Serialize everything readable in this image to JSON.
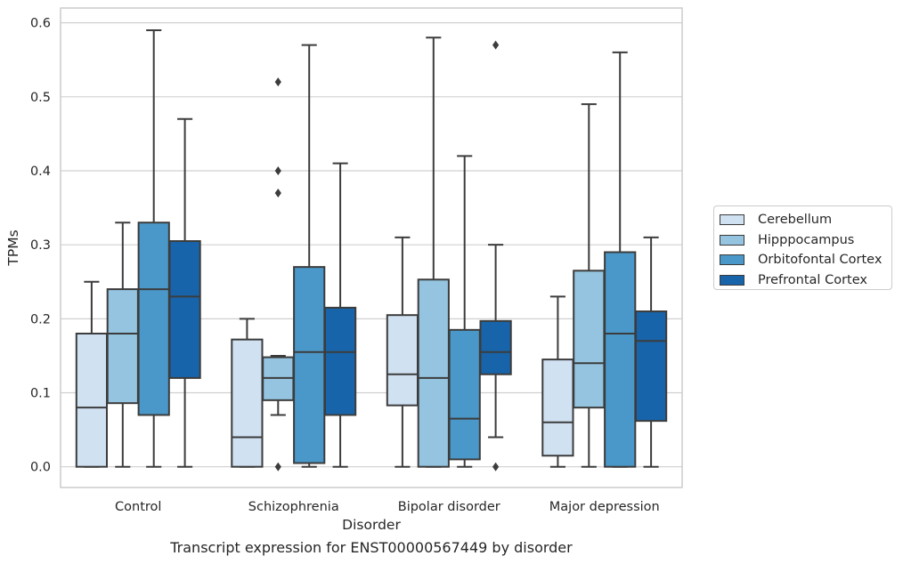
{
  "chart_data": {
    "type": "box",
    "xlabel": "Disorder",
    "ylabel": "TPMs",
    "ylim": [
      -0.028,
      0.62
    ],
    "yticks": [
      0.0,
      0.1,
      0.2,
      0.3,
      0.4,
      0.5,
      0.6
    ],
    "ytick_labels": [
      "0.0",
      "0.1",
      "0.2",
      "0.3",
      "0.4",
      "0.5",
      "0.6"
    ],
    "grid": "horizontal",
    "legend_placement": "right, outside",
    "categories": [
      "Control",
      "Schizophrenia",
      "Bipolar disorder",
      "Major depression"
    ],
    "series": [
      {
        "name": "Cerebellum",
        "color": "#d0e1f2",
        "boxes": [
          {
            "whislo": 0.0,
            "q1": 0.0,
            "med": 0.08,
            "q3": 0.18,
            "whishi": 0.25,
            "fliers": []
          },
          {
            "whislo": 0.0,
            "q1": 0.0,
            "med": 0.04,
            "q3": 0.172,
            "whishi": 0.2,
            "fliers": []
          },
          {
            "whislo": 0.0,
            "q1": 0.083,
            "med": 0.125,
            "q3": 0.205,
            "whishi": 0.31,
            "fliers": []
          },
          {
            "whislo": 0.0,
            "q1": 0.015,
            "med": 0.06,
            "q3": 0.145,
            "whishi": 0.23,
            "fliers": []
          }
        ]
      },
      {
        "name": "Hipppocampus",
        "color": "#94c4df",
        "boxes": [
          {
            "whislo": 0.0,
            "q1": 0.086,
            "med": 0.18,
            "q3": 0.24,
            "whishi": 0.33,
            "fliers": []
          },
          {
            "whislo": 0.07,
            "q1": 0.09,
            "med": 0.12,
            "q3": 0.148,
            "whishi": 0.15,
            "fliers": [
              0.0,
              0.37,
              0.4,
              0.52
            ]
          },
          {
            "whislo": 0.0,
            "q1": 0.0,
            "med": 0.12,
            "q3": 0.253,
            "whishi": 0.58,
            "fliers": []
          },
          {
            "whislo": 0.0,
            "q1": 0.08,
            "med": 0.14,
            "q3": 0.265,
            "whishi": 0.49,
            "fliers": []
          }
        ]
      },
      {
        "name": "Orbitofontal Cortex",
        "color": "#4a98c9",
        "boxes": [
          {
            "whislo": 0.0,
            "q1": 0.07,
            "med": 0.24,
            "q3": 0.33,
            "whishi": 0.59,
            "fliers": []
          },
          {
            "whislo": 0.0,
            "q1": 0.005,
            "med": 0.155,
            "q3": 0.27,
            "whishi": 0.57,
            "fliers": []
          },
          {
            "whislo": 0.0,
            "q1": 0.01,
            "med": 0.065,
            "q3": 0.185,
            "whishi": 0.42,
            "fliers": []
          },
          {
            "whislo": 0.0,
            "q1": 0.0,
            "med": 0.18,
            "q3": 0.29,
            "whishi": 0.56,
            "fliers": []
          }
        ]
      },
      {
        "name": "Prefrontal Cortex",
        "color": "#1764ab",
        "boxes": [
          {
            "whislo": 0.0,
            "q1": 0.12,
            "med": 0.23,
            "q3": 0.305,
            "whishi": 0.47,
            "fliers": []
          },
          {
            "whislo": 0.0,
            "q1": 0.07,
            "med": 0.155,
            "q3": 0.215,
            "whishi": 0.41,
            "fliers": []
          },
          {
            "whislo": 0.04,
            "q1": 0.125,
            "med": 0.155,
            "q3": 0.197,
            "whishi": 0.3,
            "fliers": [
              0.0,
              0.57
            ]
          },
          {
            "whislo": 0.0,
            "q1": 0.062,
            "med": 0.17,
            "q3": 0.21,
            "whishi": 0.31,
            "fliers": []
          }
        ]
      }
    ]
  },
  "caption": "Transcript expression for ENST00000567449 by disorder"
}
